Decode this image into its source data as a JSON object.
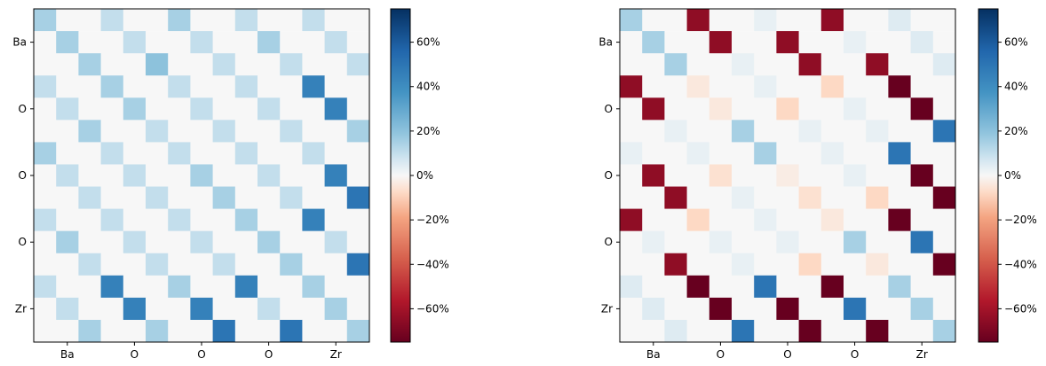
{
  "chart_data": [
    {
      "type": "heatmap",
      "title": "",
      "xlabel": "",
      "ylabel": "",
      "size": 15,
      "x_tick_labels": [
        "Ba",
        "O",
        "O",
        "O",
        "Zr"
      ],
      "y_tick_labels": [
        "Ba",
        "O",
        "O",
        "O",
        "Zr"
      ],
      "value_range": [
        -75,
        75
      ],
      "colormap": "RdBu",
      "colorbar": {
        "ticks": [
          60,
          40,
          20,
          0,
          -20,
          -40,
          -60
        ],
        "tick_labels": [
          "60%",
          "40%",
          "20%",
          "0%",
          "−20%",
          "−40%",
          "−60%"
        ]
      },
      "values": [
        [
          15,
          0,
          0,
          10,
          0,
          0,
          15,
          0,
          0,
          10,
          0,
          0,
          10,
          0,
          0
        ],
        [
          0,
          15,
          0,
          0,
          10,
          0,
          0,
          10,
          0,
          0,
          15,
          0,
          0,
          10,
          0
        ],
        [
          0,
          0,
          15,
          0,
          0,
          20,
          0,
          0,
          10,
          0,
          0,
          10,
          0,
          0,
          10
        ],
        [
          10,
          0,
          0,
          15,
          0,
          0,
          10,
          0,
          0,
          10,
          0,
          0,
          45,
          0,
          0
        ],
        [
          0,
          10,
          0,
          0,
          15,
          0,
          0,
          10,
          0,
          0,
          10,
          0,
          0,
          45,
          0
        ],
        [
          0,
          0,
          15,
          0,
          0,
          10,
          0,
          0,
          10,
          0,
          0,
          10,
          0,
          0,
          15
        ],
        [
          15,
          0,
          0,
          10,
          0,
          0,
          10,
          0,
          0,
          10,
          0,
          0,
          10,
          0,
          0
        ],
        [
          0,
          10,
          0,
          0,
          10,
          0,
          0,
          15,
          0,
          0,
          10,
          0,
          0,
          45,
          0
        ],
        [
          0,
          0,
          10,
          0,
          0,
          10,
          0,
          0,
          15,
          0,
          0,
          10,
          0,
          0,
          50
        ],
        [
          10,
          0,
          0,
          10,
          0,
          0,
          10,
          0,
          0,
          15,
          0,
          0,
          45,
          0,
          0
        ],
        [
          0,
          15,
          0,
          0,
          10,
          0,
          0,
          10,
          0,
          0,
          15,
          0,
          0,
          10,
          0
        ],
        [
          0,
          0,
          10,
          0,
          0,
          10,
          0,
          0,
          10,
          0,
          0,
          15,
          0,
          0,
          50
        ],
        [
          10,
          0,
          0,
          45,
          0,
          0,
          15,
          0,
          0,
          45,
          0,
          0,
          15,
          0,
          0
        ],
        [
          0,
          10,
          0,
          0,
          45,
          0,
          0,
          45,
          0,
          0,
          10,
          0,
          0,
          15,
          0
        ],
        [
          0,
          0,
          15,
          0,
          0,
          15,
          0,
          0,
          50,
          0,
          0,
          50,
          0,
          0,
          15
        ]
      ]
    },
    {
      "type": "heatmap",
      "title": "",
      "xlabel": "",
      "ylabel": "",
      "size": 15,
      "x_tick_labels": [
        "Ba",
        "O",
        "O",
        "O",
        "Zr"
      ],
      "y_tick_labels": [
        "Ba",
        "O",
        "O",
        "O",
        "Zr"
      ],
      "value_range": [
        -75,
        75
      ],
      "colormap": "RdBu",
      "colorbar": {
        "ticks": [
          60,
          40,
          20,
          0,
          -20,
          -40,
          -60
        ],
        "tick_labels": [
          "60%",
          "40%",
          "20%",
          "0%",
          "−20%",
          "−40%",
          "−60%"
        ]
      },
      "values": [
        [
          15,
          0,
          0,
          -65,
          0,
          0,
          3,
          0,
          0,
          -65,
          0,
          0,
          5,
          0,
          0
        ],
        [
          0,
          15,
          0,
          0,
          -65,
          0,
          0,
          -65,
          0,
          0,
          3,
          0,
          0,
          5,
          0
        ],
        [
          0,
          0,
          15,
          0,
          0,
          3,
          0,
          0,
          -65,
          0,
          0,
          -65,
          0,
          0,
          5
        ],
        [
          -65,
          0,
          0,
          -4,
          0,
          0,
          3,
          0,
          0,
          -8,
          0,
          0,
          -75,
          0,
          0
        ],
        [
          0,
          -65,
          0,
          0,
          -4,
          0,
          0,
          -8,
          0,
          0,
          3,
          0,
          0,
          -75,
          0
        ],
        [
          0,
          0,
          3,
          0,
          0,
          15,
          0,
          0,
          3,
          0,
          0,
          3,
          0,
          0,
          50
        ],
        [
          3,
          0,
          0,
          3,
          0,
          0,
          15,
          0,
          0,
          3,
          0,
          0,
          50,
          0,
          0
        ],
        [
          0,
          -65,
          0,
          0,
          -6,
          0,
          0,
          -3,
          0,
          0,
          3,
          0,
          0,
          -75,
          0
        ],
        [
          0,
          0,
          -65,
          0,
          0,
          3,
          0,
          0,
          -6,
          0,
          0,
          -8,
          0,
          0,
          -75
        ],
        [
          -65,
          0,
          0,
          -8,
          0,
          0,
          3,
          0,
          0,
          -4,
          0,
          0,
          -75,
          0,
          0
        ],
        [
          0,
          3,
          0,
          0,
          3,
          0,
          0,
          3,
          0,
          0,
          15,
          0,
          0,
          50,
          0
        ],
        [
          0,
          0,
          -65,
          0,
          0,
          3,
          0,
          0,
          -8,
          0,
          0,
          -4,
          0,
          0,
          -75
        ],
        [
          5,
          0,
          0,
          -75,
          0,
          0,
          50,
          0,
          0,
          -75,
          0,
          0,
          15,
          0,
          0
        ],
        [
          0,
          5,
          0,
          0,
          -75,
          0,
          0,
          -75,
          0,
          0,
          50,
          0,
          0,
          15,
          0
        ],
        [
          0,
          0,
          5,
          0,
          0,
          50,
          0,
          0,
          -75,
          0,
          0,
          -75,
          0,
          0,
          15
        ]
      ]
    }
  ]
}
